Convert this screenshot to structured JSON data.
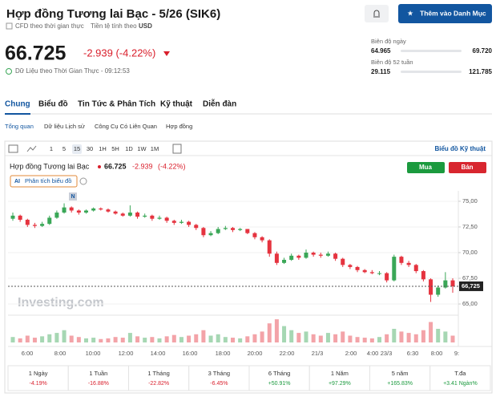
{
  "header": {
    "title": "Hợp đồng Tương lai Bạc - 5/26 (SIK6)",
    "meta": [
      "CFD theo thời gian thực",
      "Tiền tệ tính theo",
      "USD"
    ],
    "price": "66.725",
    "change": "-2.939 (-4.22%)",
    "time_note": "Dữ Liệu theo Thời Gian Thực - 09:12:53",
    "watchlist_button": "Thêm vào Danh Mục"
  },
  "ranges": [
    {
      "label": "Biên độ ngày",
      "low": "64.965",
      "high": "69.720"
    },
    {
      "label": "Biên độ 52 tuần",
      "low": "29.115",
      "high": "121.785"
    }
  ],
  "tabs": [
    "Chung",
    "Biểu đồ",
    "Tin Tức & Phân Tích",
    "Kỹ thuật",
    "Diễn đàn"
  ],
  "subtabs": [
    "Tổng quan",
    "Dữ liệu Lịch sử",
    "Công Cụ Có Liên Quan",
    "Hợp đồng"
  ],
  "toolbar": {
    "intervals": [
      "1",
      "5",
      "15",
      "30",
      "1H",
      "5H",
      "1D",
      "1W",
      "1M"
    ],
    "active": "15",
    "link": "Biểu đồ Kỹ thuật"
  },
  "chart": {
    "type": "candlestick",
    "legend": {
      "name": "Hợp đồng Tương lai Bạc",
      "price": "66.725",
      "change": "-2.939",
      "percent": "(-4.22%)"
    },
    "buy": "Mua",
    "sell": "Bán",
    "analysis": "Phân tích biểu đồ",
    "news_marker": "N",
    "watermark": "Investing.com",
    "up_color": "#3aa757",
    "down_color": "#e5333f",
    "ylim": [
      64.3,
      75.7
    ],
    "yticks": [
      {
        "value": 65,
        "label": "65,00"
      },
      {
        "value": 67.5,
        "label": "67,50"
      },
      {
        "value": 70,
        "label": "70,00"
      },
      {
        "value": 72.5,
        "label": "72,50"
      },
      {
        "value": 75,
        "label": "75,00"
      }
    ],
    "last_price_label": {
      "value": 66.725,
      "label": "66,725"
    },
    "xticks": [
      "6:00",
      "8:00",
      "10:00",
      "12:00",
      "14:00",
      "16:00",
      "18:00",
      "20:00",
      "22:00",
      "21/3",
      "2:00",
      "4:00",
      "23/3",
      "6:30",
      "8:00",
      "9:"
    ],
    "candles": [
      [
        73.3,
        73.9,
        73.1,
        73.6
      ],
      [
        73.6,
        73.7,
        73.0,
        73.2
      ],
      [
        73.2,
        73.3,
        72.5,
        72.7
      ],
      [
        72.7,
        72.9,
        72.4,
        72.6
      ],
      [
        72.6,
        73.0,
        72.5,
        72.8
      ],
      [
        72.8,
        73.6,
        72.7,
        73.4
      ],
      [
        73.4,
        74.1,
        73.3,
        73.9
      ],
      [
        73.9,
        74.8,
        73.8,
        74.4
      ],
      [
        74.4,
        74.5,
        73.9,
        74.1
      ],
      [
        74.1,
        74.2,
        73.7,
        73.9
      ],
      [
        73.9,
        74.2,
        73.8,
        74.1
      ],
      [
        74.1,
        74.4,
        74.0,
        74.3
      ],
      [
        74.3,
        74.4,
        74.1,
        74.2
      ],
      [
        74.2,
        74.3,
        73.9,
        74.0
      ],
      [
        74.0,
        74.1,
        73.7,
        73.8
      ],
      [
        73.8,
        73.9,
        73.5,
        73.6
      ],
      [
        73.6,
        74.6,
        73.5,
        73.9
      ],
      [
        73.9,
        74.0,
        73.3,
        73.5
      ],
      [
        73.5,
        73.8,
        73.4,
        73.6
      ],
      [
        73.6,
        73.7,
        73.1,
        73.3
      ],
      [
        73.3,
        73.6,
        73.2,
        73.4
      ],
      [
        73.4,
        73.5,
        72.9,
        73.1
      ],
      [
        73.1,
        73.2,
        72.7,
        72.9
      ],
      [
        72.9,
        73.2,
        72.8,
        73.0
      ],
      [
        73.0,
        73.1,
        72.5,
        72.7
      ],
      [
        72.7,
        72.8,
        72.2,
        72.4
      ],
      [
        72.4,
        72.5,
        71.5,
        71.7
      ],
      [
        71.7,
        72.1,
        71.6,
        71.9
      ],
      [
        71.9,
        72.5,
        71.8,
        72.3
      ],
      [
        72.3,
        72.6,
        72.2,
        72.4
      ],
      [
        72.4,
        72.5,
        72.0,
        72.2
      ],
      [
        72.2,
        72.4,
        72.1,
        72.3
      ],
      [
        72.3,
        72.3,
        71.8,
        71.9
      ],
      [
        71.9,
        72.0,
        71.3,
        71.5
      ],
      [
        71.5,
        71.6,
        71.0,
        71.2
      ],
      [
        71.2,
        71.3,
        69.6,
        69.9
      ],
      [
        69.9,
        70.1,
        68.8,
        69.0
      ],
      [
        69.0,
        69.5,
        68.9,
        69.3
      ],
      [
        69.3,
        69.9,
        69.2,
        69.7
      ],
      [
        69.7,
        69.8,
        69.3,
        69.5
      ],
      [
        69.5,
        70.3,
        69.4,
        70.0
      ],
      [
        70.0,
        70.1,
        69.6,
        69.8
      ],
      [
        69.8,
        70.0,
        69.5,
        69.7
      ],
      [
        69.7,
        70.1,
        69.6,
        69.9
      ],
      [
        69.9,
        70.0,
        69.2,
        69.4
      ],
      [
        69.4,
        69.5,
        68.6,
        68.8
      ],
      [
        68.8,
        68.9,
        68.4,
        68.6
      ],
      [
        68.6,
        68.7,
        68.1,
        68.3
      ],
      [
        68.3,
        68.4,
        68.0,
        68.1
      ],
      [
        68.1,
        68.3,
        67.9,
        68.0
      ],
      [
        68.0,
        68.2,
        67.8,
        68.0
      ],
      [
        68.0,
        68.1,
        67.1,
        67.3
      ],
      [
        67.3,
        69.8,
        67.2,
        69.6
      ],
      [
        69.6,
        69.7,
        68.8,
        69.0
      ],
      [
        69.0,
        69.2,
        68.6,
        68.8
      ],
      [
        68.8,
        68.9,
        68.0,
        68.2
      ],
      [
        68.2,
        68.3,
        67.2,
        67.4
      ],
      [
        67.4,
        67.5,
        65.2,
        65.9
      ],
      [
        65.9,
        66.8,
        65.7,
        66.6
      ],
      [
        66.6,
        68.1,
        66.5,
        67.3
      ],
      [
        67.3,
        67.5,
        66.1,
        66.725
      ]
    ],
    "volume": [
      8,
      6,
      10,
      7,
      9,
      12,
      14,
      18,
      10,
      8,
      6,
      7,
      5,
      6,
      8,
      7,
      14,
      9,
      7,
      8,
      6,
      9,
      11,
      8,
      10,
      12,
      18,
      10,
      12,
      8,
      7,
      6,
      9,
      12,
      16,
      28,
      34,
      24,
      18,
      14,
      16,
      12,
      10,
      14,
      12,
      16,
      10,
      8,
      7,
      6,
      8,
      12,
      20,
      16,
      14,
      12,
      18,
      30,
      20,
      16,
      10
    ]
  },
  "performance": [
    {
      "period": "1 Ngày",
      "change": "-4.19%"
    },
    {
      "period": "1 Tuần",
      "change": "-16.88%"
    },
    {
      "period": "1 Tháng",
      "change": "-22.82%"
    },
    {
      "period": "3 Tháng",
      "change": "-6.45%"
    },
    {
      "period": "6 Tháng",
      "change": "+50.91%"
    },
    {
      "period": "1 Năm",
      "change": "+97.29%"
    },
    {
      "period": "5 năm",
      "change": "+165.83%"
    },
    {
      "period": "T.đa",
      "change": "+3.41 Ngàn%"
    }
  ]
}
